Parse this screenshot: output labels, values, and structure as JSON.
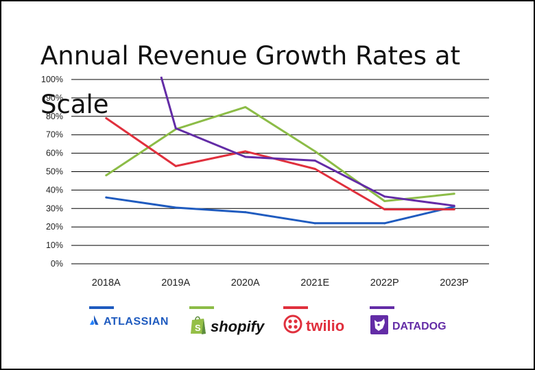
{
  "chart_data": {
    "type": "line",
    "title": "Annual Revenue Growth Rates at Scale",
    "categories": [
      "2018A",
      "2019A",
      "2020A",
      "2021E",
      "2022P",
      "2023P"
    ],
    "y_ticks": [
      "0%",
      "10%",
      "20%",
      "30%",
      "40%",
      "50%",
      "60%",
      "70%",
      "80%",
      "90%",
      "100%"
    ],
    "ylim": [
      0,
      100
    ],
    "grid": true,
    "legend_position": "bottom",
    "series": [
      {
        "name": "ATLASSIAN",
        "color": "#1f5bbf",
        "values": [
          36,
          30.5,
          28,
          22,
          22,
          31
        ]
      },
      {
        "name": "shopify",
        "color": "#8cbc47",
        "values": [
          48,
          73,
          85,
          61,
          34,
          38
        ]
      },
      {
        "name": "twilio",
        "color": "#e0303d",
        "values": [
          79,
          53,
          61,
          51.5,
          29.5,
          29.5
        ]
      },
      {
        "name": "DATADOG",
        "color": "#632ca6",
        "values": [
          null,
          73.5,
          58,
          56,
          36.5,
          31.5
        ]
      }
    ],
    "datadog_2018A_above_axis": true
  }
}
